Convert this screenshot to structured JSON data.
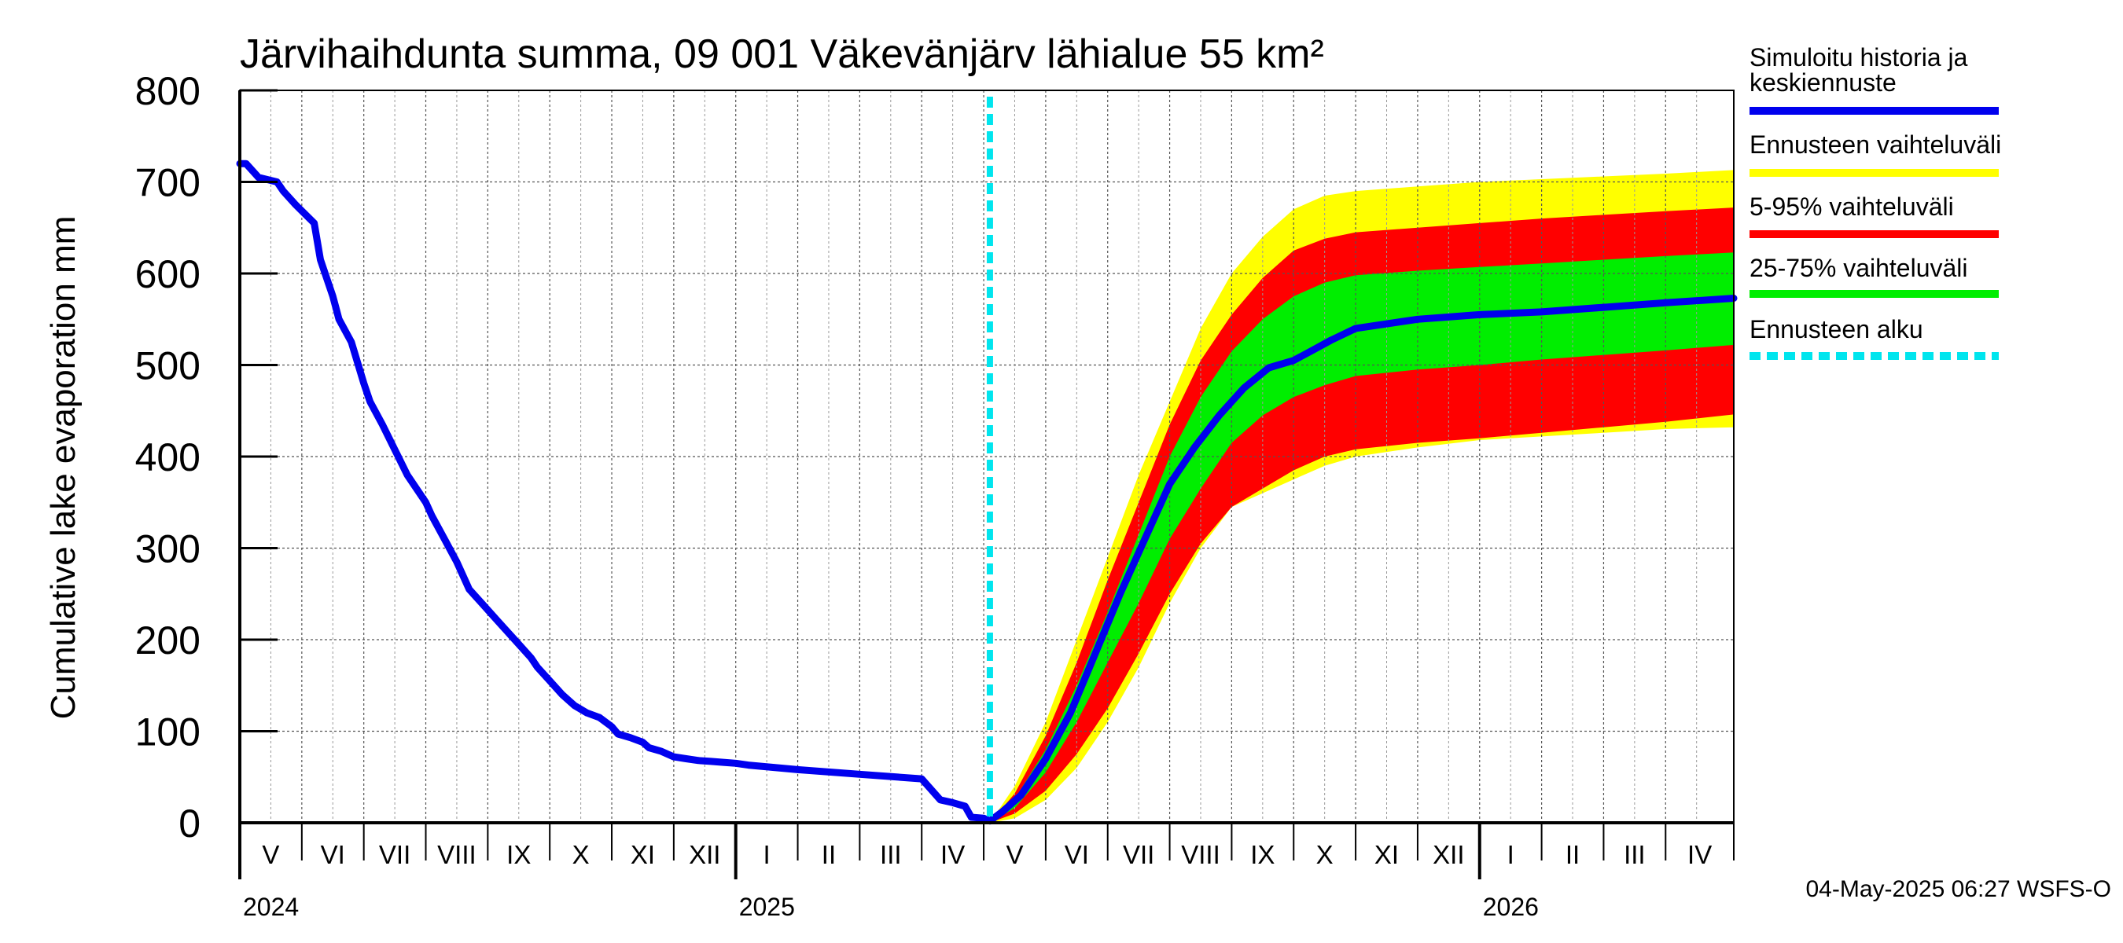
{
  "chart_data": {
    "type": "area",
    "title": "Järvihaihdunta summa, 09 001 Väkevänjärv lähialue 55 km²",
    "ylabel": "Cumulative lake evaporation   mm",
    "xlabel": "",
    "ylim": [
      0,
      800
    ],
    "yticks": [
      0,
      100,
      200,
      300,
      400,
      500,
      600,
      700,
      800
    ],
    "xlim": [
      0,
      24.1
    ],
    "grid": true,
    "months": [
      {
        "label": "V",
        "start": 0.0
      },
      {
        "label": "VI",
        "start": 1.0
      },
      {
        "label": "VII",
        "start": 2.0
      },
      {
        "label": "VIII",
        "start": 3.0
      },
      {
        "label": "IX",
        "start": 4.0
      },
      {
        "label": "X",
        "start": 5.0
      },
      {
        "label": "XI",
        "start": 6.0
      },
      {
        "label": "XII",
        "start": 7.0
      },
      {
        "label": "I",
        "start": 8.0
      },
      {
        "label": "II",
        "start": 9.0
      },
      {
        "label": "III",
        "start": 10.0
      },
      {
        "label": "IV",
        "start": 11.0
      },
      {
        "label": "V",
        "start": 12.0
      },
      {
        "label": "VI",
        "start": 13.0
      },
      {
        "label": "VII",
        "start": 14.0
      },
      {
        "label": "VIII",
        "start": 15.0
      },
      {
        "label": "IX",
        "start": 16.0
      },
      {
        "label": "X",
        "start": 17.0
      },
      {
        "label": "XI",
        "start": 18.0
      },
      {
        "label": "XII",
        "start": 19.0
      },
      {
        "label": "I",
        "start": 20.0
      },
      {
        "label": "II",
        "start": 21.0
      },
      {
        "label": "III",
        "start": 22.0
      },
      {
        "label": "IV",
        "start": 23.0
      }
    ],
    "years": [
      {
        "label": "2024",
        "at": 0.0
      },
      {
        "label": "2025",
        "at": 8.0
      },
      {
        "label": "2026",
        "at": 20.0
      }
    ],
    "forecast_start": 12.1,
    "series": [
      {
        "name": "Ennusteen vaihteluväli",
        "kind": "band",
        "color": "#ffff00",
        "x": [
          12.1,
          12.5,
          13.0,
          13.5,
          14.0,
          14.5,
          15.0,
          15.5,
          16.0,
          16.5,
          17.0,
          17.5,
          18.0,
          19.0,
          20.0,
          21.0,
          22.0,
          23.0,
          24.1
        ],
        "upper": [
          0,
          40,
          110,
          200,
          290,
          380,
          460,
          540,
          600,
          640,
          670,
          685,
          690,
          695,
          700,
          703,
          706,
          709,
          713
        ],
        "lower": [
          0,
          5,
          25,
          60,
          110,
          170,
          240,
          300,
          345,
          360,
          375,
          390,
          400,
          410,
          418,
          422,
          426,
          430,
          432
        ]
      },
      {
        "name": "5-95% vaihteluväli",
        "kind": "band",
        "color": "#ff0000",
        "x": [
          12.1,
          12.5,
          13.0,
          13.5,
          14.0,
          14.5,
          15.0,
          15.5,
          16.0,
          16.5,
          17.0,
          17.5,
          18.0,
          19.0,
          20.0,
          21.0,
          22.0,
          23.0,
          24.1
        ],
        "upper": [
          0,
          32,
          95,
          175,
          265,
          350,
          435,
          505,
          555,
          595,
          625,
          638,
          645,
          650,
          655,
          660,
          664,
          668,
          672
        ],
        "lower": [
          0,
          10,
          35,
          75,
          125,
          185,
          250,
          305,
          345,
          365,
          385,
          400,
          408,
          415,
          420,
          426,
          432,
          438,
          446
        ]
      },
      {
        "name": "25-75% vaihteluväli",
        "kind": "band",
        "color": "#00ee00",
        "x": [
          12.1,
          12.5,
          13.0,
          13.5,
          14.0,
          14.5,
          15.0,
          15.5,
          16.0,
          16.5,
          17.0,
          17.5,
          18.0,
          19.0,
          20.0,
          21.0,
          22.0,
          23.0,
          24.1
        ],
        "upper": [
          0,
          26,
          80,
          150,
          230,
          315,
          400,
          465,
          515,
          550,
          575,
          590,
          598,
          603,
          607,
          611,
          615,
          619,
          623
        ],
        "lower": [
          0,
          16,
          55,
          110,
          175,
          240,
          310,
          365,
          415,
          445,
          465,
          478,
          488,
          495,
          500,
          506,
          511,
          516,
          522
        ]
      },
      {
        "name": "Simuloitu historia ja keskiennuste",
        "kind": "line",
        "color": "#0000ee",
        "x": [
          0.0,
          0.1,
          0.3,
          0.6,
          0.7,
          0.9,
          1.2,
          1.3,
          1.5,
          1.6,
          1.8,
          2.0,
          2.1,
          2.3,
          2.7,
          3.0,
          3.1,
          3.3,
          3.5,
          3.7,
          3.9,
          4.1,
          4.3,
          4.5,
          4.7,
          4.8,
          5.0,
          5.2,
          5.4,
          5.6,
          5.8,
          6.0,
          6.1,
          6.3,
          6.5,
          6.6,
          6.8,
          7.0,
          7.2,
          7.4,
          7.6,
          7.8,
          8.0,
          8.2,
          9.0,
          10.0,
          11.0,
          11.3,
          11.5,
          11.7,
          11.8,
          12.0,
          12.1,
          12.3,
          12.6,
          13.0,
          13.4,
          13.8,
          14.2,
          14.6,
          15.0,
          15.4,
          15.8,
          16.2,
          16.6,
          17.0,
          17.3,
          17.6,
          18.0,
          19.0,
          20.0,
          21.0,
          22.0,
          23.0,
          24.1
        ],
        "y": [
          720,
          720,
          705,
          700,
          690,
          675,
          655,
          615,
          575,
          550,
          525,
          480,
          460,
          435,
          380,
          350,
          335,
          310,
          285,
          255,
          240,
          225,
          210,
          195,
          180,
          170,
          155,
          140,
          128,
          120,
          115,
          105,
          97,
          93,
          88,
          82,
          78,
          72,
          70,
          68,
          67,
          66,
          65,
          63,
          58,
          53,
          48,
          25,
          22,
          18,
          6,
          5,
          2,
          12,
          30,
          70,
          120,
          185,
          250,
          310,
          370,
          410,
          445,
          475,
          497,
          505,
          516,
          527,
          540,
          550,
          555,
          558,
          563,
          568,
          573
        ]
      },
      {
        "name": "Ennusteen alku",
        "kind": "vline",
        "color": "#00e5ee"
      }
    ],
    "legend_placement": "right",
    "legend_labels": [
      "Simuloitu historia ja",
      "keskiennuste",
      "Ennusteen vaihteluväli",
      "5-95% vaihteluväli",
      "25-75% vaihteluväli",
      "Ennusteen alku"
    ]
  },
  "footer": {
    "timestamp": "04-May-2025 06:27 WSFS-O"
  }
}
